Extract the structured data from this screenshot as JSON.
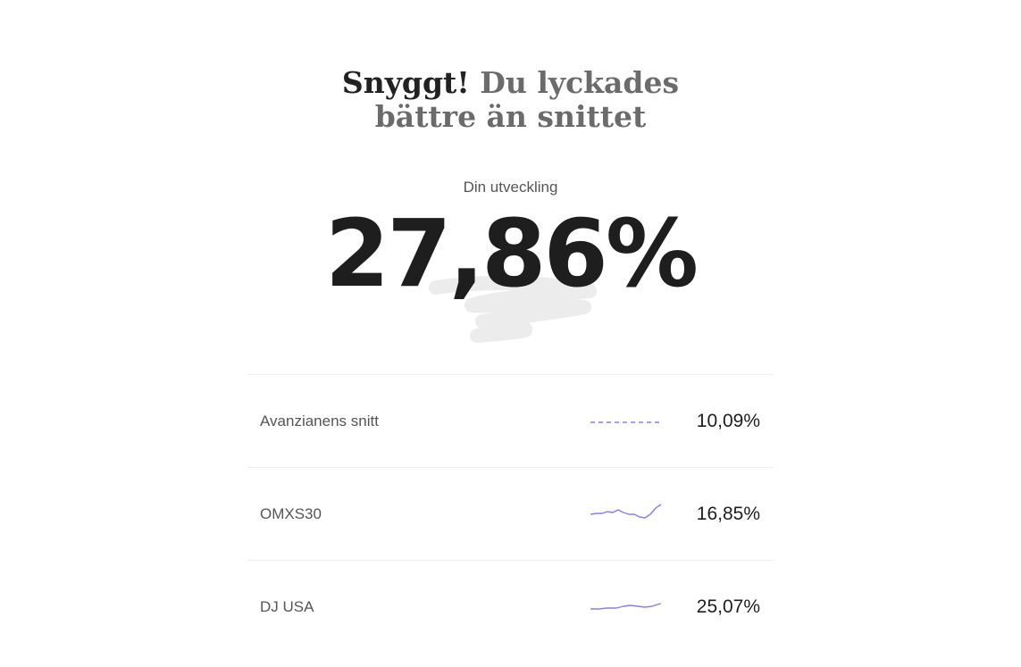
{
  "headline": {
    "strong": "Snyggt!",
    "muted_line1": "Du lyckades",
    "muted_line2": "bättre än snittet"
  },
  "result": {
    "label": "Din utveckling",
    "value": "27,86%"
  },
  "comparisons": [
    {
      "label": "Avanzianens snitt",
      "value": "10,09%",
      "sparkline": "dashed-line"
    },
    {
      "label": "OMXS30",
      "value": "16,85%",
      "sparkline": "line"
    },
    {
      "label": "DJ USA",
      "value": "25,07%",
      "sparkline": "line"
    }
  ],
  "colors": {
    "accent": "#8b7cf0",
    "text": "#222222",
    "muted": "#6b6b6b",
    "divider": "#eeeeee"
  }
}
